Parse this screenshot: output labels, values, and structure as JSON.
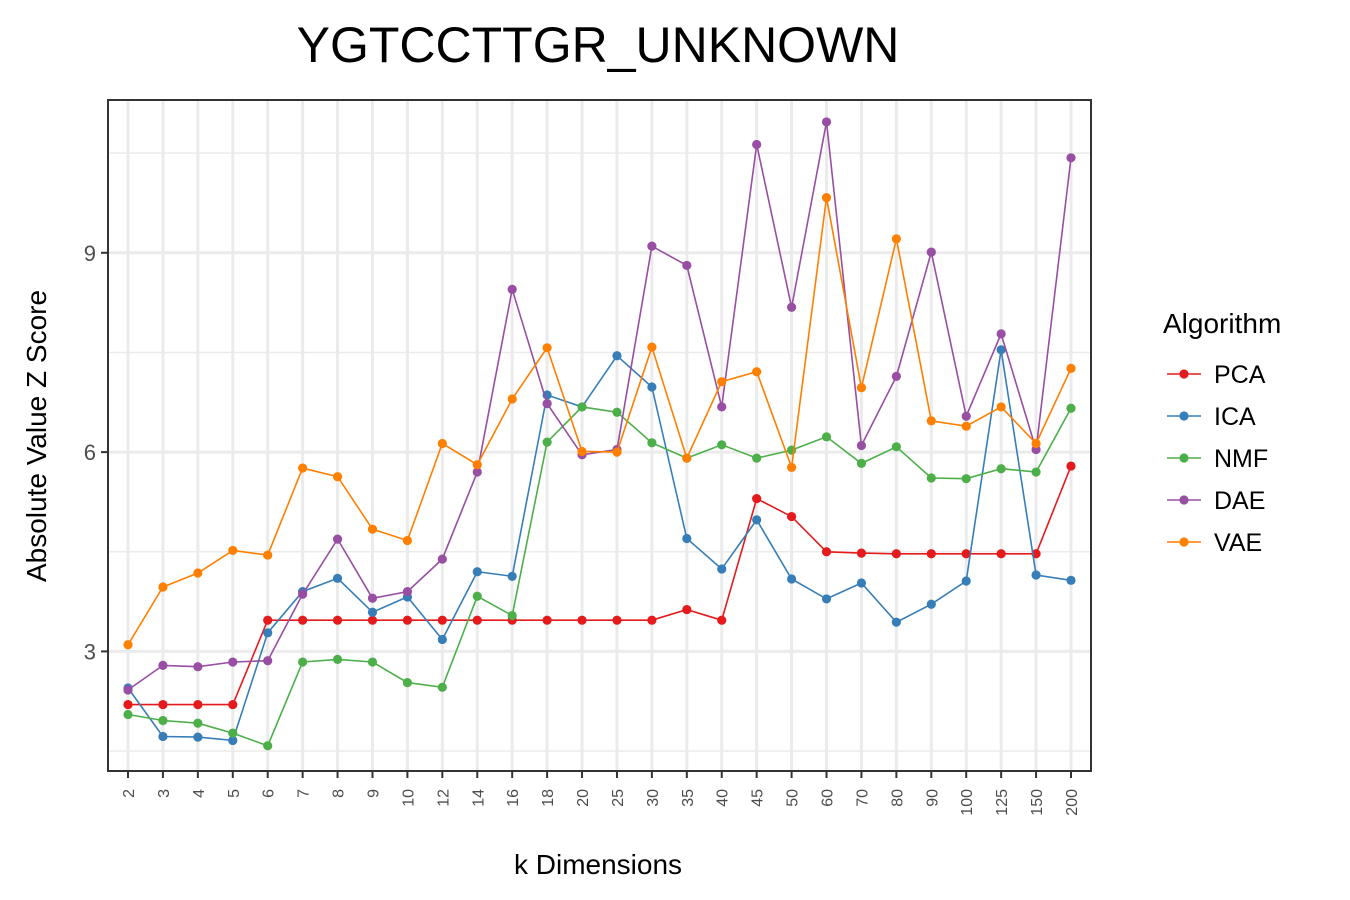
{
  "chart_data": {
    "type": "line",
    "title": "YGTCCTTGR_UNKNOWN",
    "xlabel": "k Dimensions",
    "ylabel": "Absolute Value Z Score",
    "categories": [
      "2",
      "3",
      "4",
      "5",
      "6",
      "7",
      "8",
      "9",
      "10",
      "12",
      "14",
      "16",
      "18",
      "20",
      "25",
      "30",
      "35",
      "40",
      "45",
      "50",
      "60",
      "70",
      "80",
      "90",
      "100",
      "125",
      "150",
      "200"
    ],
    "ylim": [
      1.2,
      11.3
    ],
    "yticks": [
      3,
      6,
      9
    ],
    "grid": true,
    "legend_title": "Algorithm",
    "legend_position": "right",
    "series": [
      {
        "name": "PCA",
        "color": "#E41A1C",
        "values": [
          2.2,
          2.2,
          2.2,
          2.2,
          3.47,
          3.47,
          3.47,
          3.47,
          3.47,
          3.47,
          3.47,
          3.47,
          3.47,
          3.47,
          3.47,
          3.47,
          3.63,
          3.47,
          5.3,
          5.03,
          4.5,
          4.48,
          4.47,
          4.47,
          4.47,
          4.47,
          4.47,
          5.79
        ]
      },
      {
        "name": "ICA",
        "color": "#377EB8",
        "values": [
          2.45,
          1.72,
          1.71,
          1.66,
          3.28,
          3.9,
          4.1,
          3.59,
          3.82,
          3.18,
          4.2,
          4.13,
          6.86,
          6.68,
          7.45,
          6.98,
          4.7,
          4.24,
          4.98,
          4.09,
          3.79,
          4.03,
          3.44,
          3.71,
          4.06,
          7.54,
          4.15,
          4.07
        ]
      },
      {
        "name": "NMF",
        "color": "#4DAF4A",
        "values": [
          2.05,
          1.96,
          1.92,
          1.77,
          1.58,
          2.84,
          2.88,
          2.84,
          2.53,
          2.46,
          3.83,
          3.54,
          6.15,
          6.68,
          6.6,
          6.14,
          5.91,
          6.11,
          5.91,
          6.03,
          6.23,
          5.83,
          6.08,
          5.61,
          5.6,
          5.75,
          5.7,
          6.66
        ]
      },
      {
        "name": "DAE",
        "color": "#984EA3",
        "values": [
          2.42,
          2.79,
          2.77,
          2.84,
          2.86,
          3.86,
          4.69,
          3.8,
          3.9,
          4.39,
          5.7,
          8.45,
          6.73,
          5.96,
          6.04,
          9.1,
          8.81,
          6.68,
          10.63,
          8.18,
          10.97,
          6.1,
          7.14,
          9.01,
          6.54,
          7.78,
          6.04,
          10.43
        ]
      },
      {
        "name": "VAE",
        "color": "#FF7F00",
        "values": [
          3.1,
          3.97,
          4.18,
          4.52,
          4.45,
          5.76,
          5.63,
          4.84,
          4.67,
          6.13,
          5.81,
          6.8,
          7.57,
          6.01,
          6.0,
          7.58,
          5.91,
          7.06,
          7.21,
          5.77,
          9.83,
          6.97,
          9.21,
          6.47,
          6.39,
          6.68,
          6.13,
          7.26
        ]
      }
    ]
  }
}
